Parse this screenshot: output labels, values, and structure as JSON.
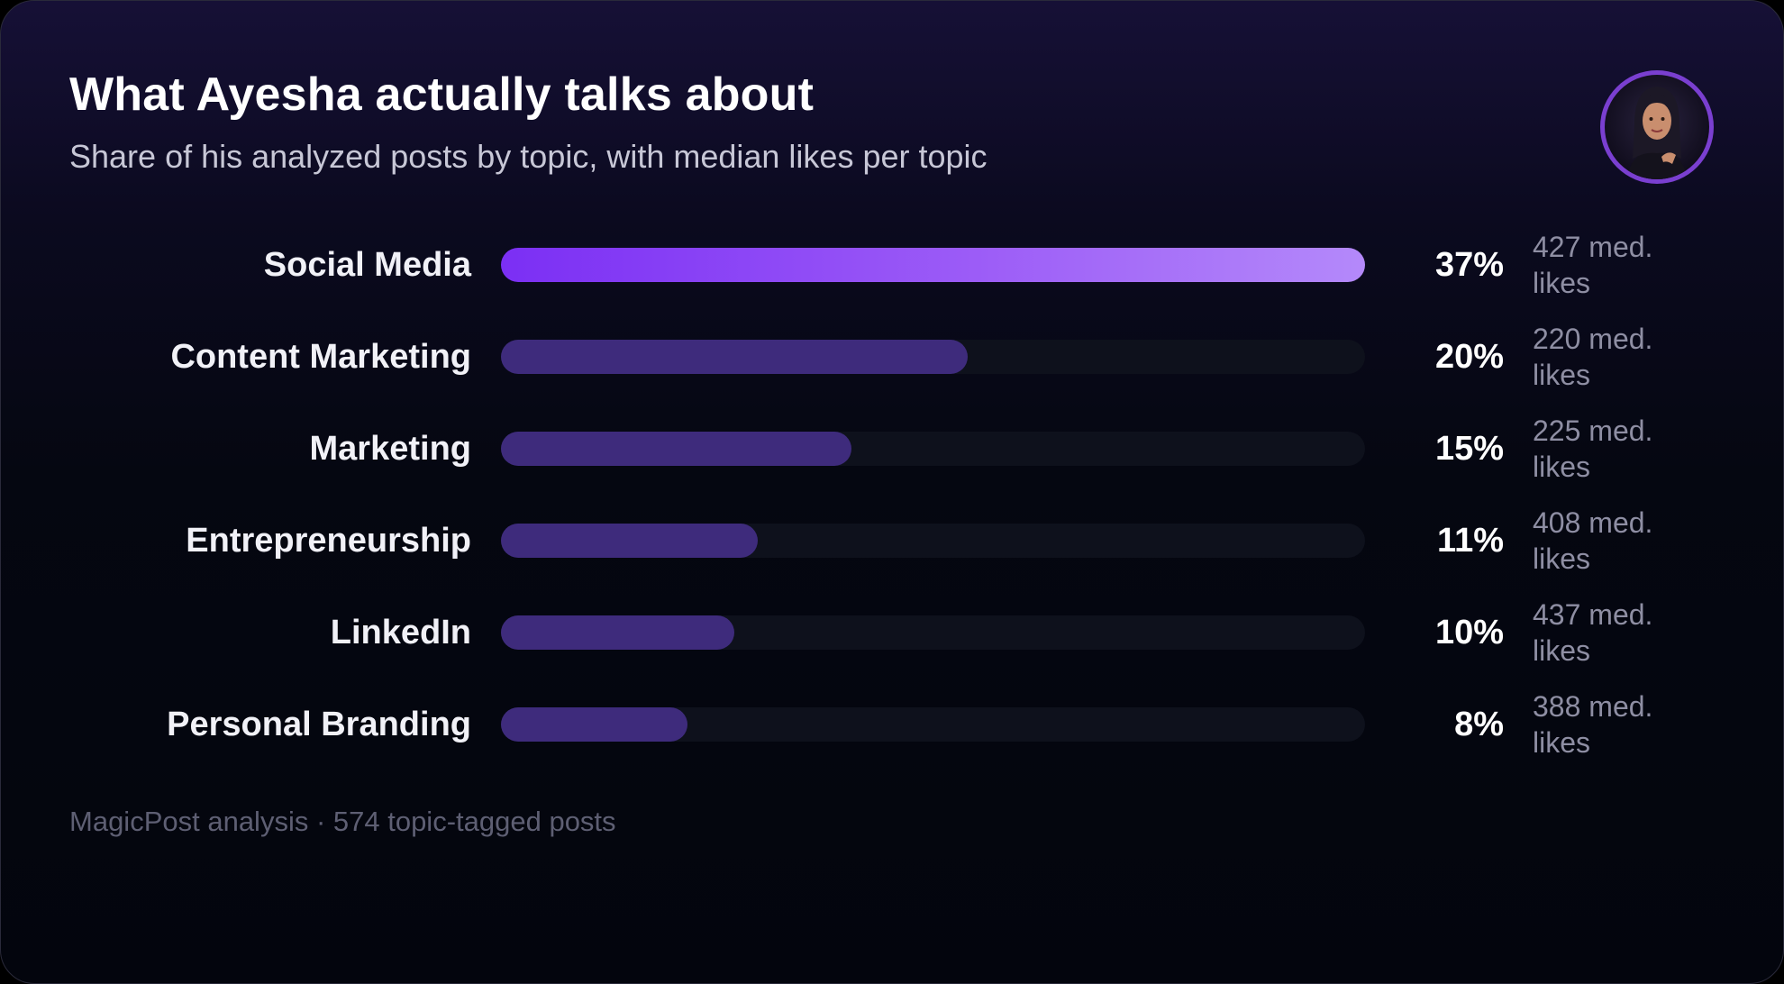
{
  "title": "What Ayesha actually talks about",
  "subtitle": "Share of his analyzed posts by topic, with median likes per topic",
  "footer": "MagicPost analysis · 574 topic-tagged posts",
  "colors": {
    "top_bar_start": "#7b2ff4",
    "top_bar_end": "#b489fa",
    "bar": "#3e2b7c",
    "track": "#0e111c"
  },
  "chart_data": {
    "type": "bar",
    "orientation": "horizontal",
    "categories": [
      "Social Media",
      "Content Marketing",
      "Marketing",
      "Entrepreneurship",
      "LinkedIn",
      "Personal Branding"
    ],
    "values": [
      37,
      20,
      15,
      11,
      10,
      8
    ],
    "value_labels": [
      "37%",
      "20%",
      "15%",
      "11%",
      "10%",
      "8%"
    ],
    "median_likes": [
      "427 med. likes",
      "220 med. likes",
      "225 med. likes",
      "408 med. likes",
      "437 med. likes",
      "388 med. likes"
    ],
    "xlim": [
      0,
      37
    ],
    "grid": false,
    "legend": "none"
  }
}
